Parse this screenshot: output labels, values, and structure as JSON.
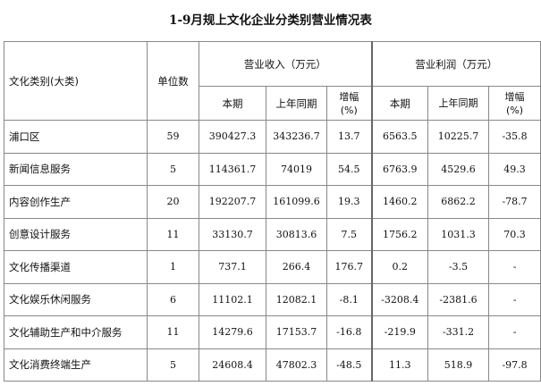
{
  "title": "1-9月规上文化企业分类别营业情况表",
  "headers": {
    "category": "文化类别(大类)",
    "units": "单位数",
    "revenue": "营业收入（万元）",
    "profit": "营业利润（万元）",
    "current": "本期",
    "last_year": "上年同期",
    "growth_line1": "增幅",
    "growth_line2": "(%)"
  },
  "rows": [
    {
      "name": "浦口区",
      "units": "59",
      "rev_cur": "390427.3",
      "rev_prev": "343236.7",
      "rev_growth": "13.7",
      "prof_cur": "6563.5",
      "prof_prev": "10225.7",
      "prof_growth": "-35.8"
    },
    {
      "name": "新闻信息服务",
      "units": "5",
      "rev_cur": "114361.7",
      "rev_prev": "74019",
      "rev_growth": "54.5",
      "prof_cur": "6763.9",
      "prof_prev": "4529.6",
      "prof_growth": "49.3"
    },
    {
      "name": "内容创作生产",
      "units": "20",
      "rev_cur": "192207.7",
      "rev_prev": "161099.6",
      "rev_growth": "19.3",
      "prof_cur": "1460.2",
      "prof_prev": "6862.2",
      "prof_growth": "-78.7"
    },
    {
      "name": "创意设计服务",
      "units": "11",
      "rev_cur": "33130.7",
      "rev_prev": "30813.6",
      "rev_growth": "7.5",
      "prof_cur": "1756.2",
      "prof_prev": "1031.3",
      "prof_growth": "70.3"
    },
    {
      "name": "文化传播渠道",
      "units": "1",
      "rev_cur": "737.1",
      "rev_prev": "266.4",
      "rev_growth": "176.7",
      "prof_cur": "0.2",
      "prof_prev": "-3.5",
      "prof_growth": "-"
    },
    {
      "name": "文化娱乐休闲服务",
      "units": "6",
      "rev_cur": "11102.1",
      "rev_prev": "12082.1",
      "rev_growth": "-8.1",
      "prof_cur": "-3208.4",
      "prof_prev": "-2381.6",
      "prof_growth": "-"
    },
    {
      "name": "文化辅助生产和中介服务",
      "units": "11",
      "rev_cur": "14279.6",
      "rev_prev": "17153.7",
      "rev_growth": "-16.8",
      "prof_cur": "-219.9",
      "prof_prev": "-331.2",
      "prof_growth": "-"
    },
    {
      "name": "文化消费终端生产",
      "units": "5",
      "rev_cur": "24608.4",
      "rev_prev": "47802.3",
      "rev_growth": "-48.5",
      "prof_cur": "11.3",
      "prof_prev": "518.9",
      "prof_growth": "-97.8"
    }
  ]
}
